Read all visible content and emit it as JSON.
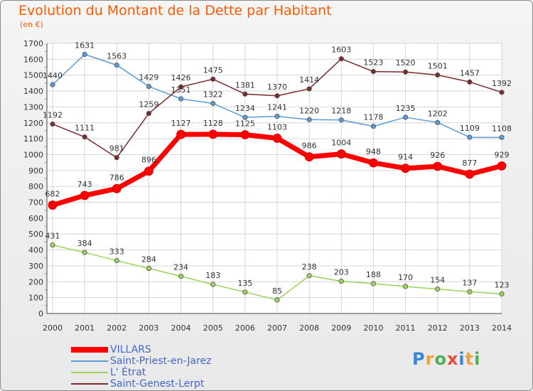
{
  "header": {
    "title": "Evolution du Montant de la Dette par Habitant",
    "unit": "(en €)"
  },
  "logo": {
    "text": "Proxiti",
    "letter_colors": [
      "#3a86d8",
      "#e8a23a",
      "#4caf50",
      "#e74c3c",
      "#3a86d8",
      "#e8a23a",
      "#4caf50"
    ]
  },
  "chart_data": {
    "type": "line",
    "x": [
      2000,
      2001,
      2002,
      2003,
      2004,
      2005,
      2006,
      2007,
      2008,
      2009,
      2010,
      2011,
      2012,
      2013,
      2014
    ],
    "ylim": [
      0,
      1700
    ],
    "yticks": [
      0,
      100,
      200,
      300,
      400,
      500,
      600,
      700,
      800,
      900,
      1000,
      1100,
      1200,
      1300,
      1400,
      1500,
      1600,
      1700
    ],
    "grid": true,
    "legend_position": "bottom-left",
    "series": [
      {
        "name": "VILLARS",
        "color": "#ff0000",
        "emphasis": true,
        "values": [
          682,
          743,
          786,
          896,
          1127,
          1128,
          1125,
          1103,
          986,
          1004,
          948,
          914,
          926,
          877,
          929
        ]
      },
      {
        "name": "Saint-Priest-en-Jarez",
        "color": "#5b9bd5",
        "values": [
          1440,
          1631,
          1563,
          1429,
          1351,
          1322,
          1234,
          1241,
          1220,
          1218,
          1178,
          1235,
          1202,
          1109,
          1108
        ]
      },
      {
        "name": "L' Étrat",
        "color": "#9ad35a",
        "values": [
          431,
          384,
          333,
          284,
          234,
          183,
          135,
          85,
          238,
          203,
          188,
          170,
          154,
          137,
          123
        ]
      },
      {
        "name": "Saint-Genest-Lerpt",
        "color": "#7b2a2a",
        "values": [
          1192,
          1111,
          981,
          1259,
          1426,
          1475,
          1381,
          1370,
          1414,
          1603,
          1523,
          1520,
          1501,
          1457,
          1392
        ]
      }
    ]
  }
}
